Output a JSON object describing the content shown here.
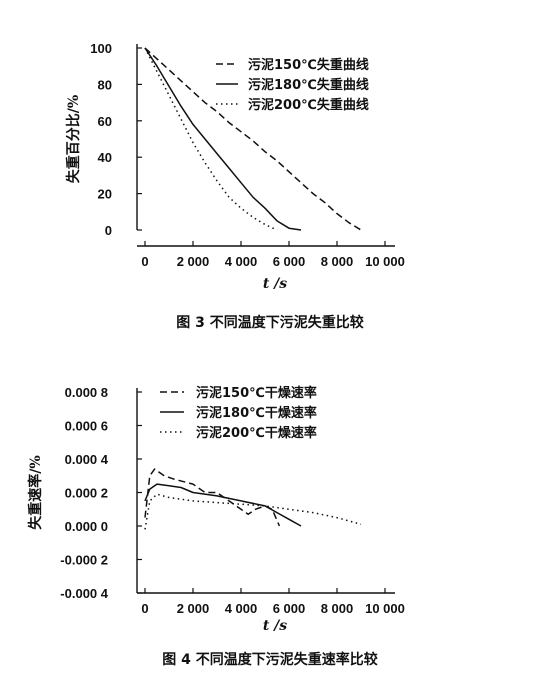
{
  "chart_data": [
    {
      "type": "line",
      "caption": "图 3 不同温度下污泥失重比较",
      "xlabel": "t /s",
      "ylabel": "失重百分比/%",
      "xlim": [
        0,
        10000
      ],
      "ylim": [
        0,
        100
      ],
      "xticks": [
        "0",
        "2 000",
        "4 000",
        "6 000",
        "8 000",
        "10 000"
      ],
      "yticks": [
        "0",
        "20",
        "40",
        "60",
        "80",
        "100"
      ],
      "legend_position": "top-right",
      "grid": false,
      "series": [
        {
          "name": "污泥150℃失重曲线",
          "style": "dashed",
          "x": [
            0,
            500,
            1000,
            1500,
            2000,
            2500,
            3000,
            3500,
            4000,
            4500,
            5000,
            5500,
            6000,
            6500,
            7000,
            7500,
            8000,
            8500,
            9000
          ],
          "y": [
            100,
            94,
            88,
            82,
            76,
            70,
            65,
            59,
            54,
            49,
            43,
            38,
            32,
            26,
            20,
            15,
            9,
            4,
            0
          ]
        },
        {
          "name": "污泥180℃失重曲线",
          "style": "solid",
          "x": [
            0,
            500,
            1000,
            1500,
            2000,
            2500,
            3000,
            3500,
            4000,
            4500,
            5000,
            5500,
            6000,
            6500
          ],
          "y": [
            100,
            90,
            79,
            68,
            58,
            50,
            42,
            34,
            26,
            18,
            12,
            5,
            1,
            0
          ]
        },
        {
          "name": "污泥200℃失重曲线",
          "style": "dotted",
          "x": [
            0,
            500,
            1000,
            1500,
            2000,
            2500,
            3000,
            3500,
            4000,
            4500,
            5000,
            5500
          ],
          "y": [
            100,
            87,
            74,
            61,
            48,
            37,
            27,
            18,
            12,
            7,
            3,
            0
          ]
        }
      ]
    },
    {
      "type": "line",
      "caption": "图 4 不同温度下污泥失重速率比较",
      "xlabel": "t /s",
      "ylabel": "失重速率/%",
      "xlim": [
        0,
        10000
      ],
      "ylim": [
        -0.0004,
        0.0008
      ],
      "xticks": [
        "0",
        "2 000",
        "4 000",
        "6 000",
        "8 000",
        "10 000"
      ],
      "yticks": [
        "-0.000 4",
        "-0.000 2",
        "0.000 0",
        "0.000 2",
        "0.000 4",
        "0.000 6",
        "0.000 8"
      ],
      "legend_position": "top",
      "grid": false,
      "series": [
        {
          "name": "污泥150℃干燥速率",
          "style": "dashed",
          "x": [
            0,
            200,
            400,
            800,
            1200,
            2000,
            2500,
            3000,
            3500,
            4000,
            4300,
            4600,
            5000,
            5300,
            5600
          ],
          "y": [
            5e-05,
            0.0003,
            0.00034,
            0.0003,
            0.00028,
            0.00025,
            0.0002,
            0.0002,
            0.00015,
            0.0001,
            7e-05,
            0.0001,
            0.00012,
            0.0001,
            0.0
          ]
        },
        {
          "name": "污泥180℃干燥速率",
          "style": "solid",
          "x": [
            0,
            200,
            500,
            1000,
            1500,
            2000,
            3000,
            4000,
            5000,
            5500,
            6000,
            6500
          ],
          "y": [
            0.00015,
            0.00022,
            0.00025,
            0.00024,
            0.00023,
            0.0002,
            0.00018,
            0.00015,
            0.00012,
            8e-05,
            4e-05,
            0.0
          ]
        },
        {
          "name": "污泥200℃干燥速率",
          "style": "dotted",
          "x": [
            0,
            200,
            500,
            1000,
            2000,
            3000,
            4000,
            5000,
            6000,
            7000,
            8000,
            9000
          ],
          "y": [
            -2e-05,
            0.00015,
            0.00019,
            0.00017,
            0.00015,
            0.00014,
            0.00013,
            0.00012,
            0.0001,
            8e-05,
            5e-05,
            1e-05
          ]
        }
      ]
    }
  ]
}
